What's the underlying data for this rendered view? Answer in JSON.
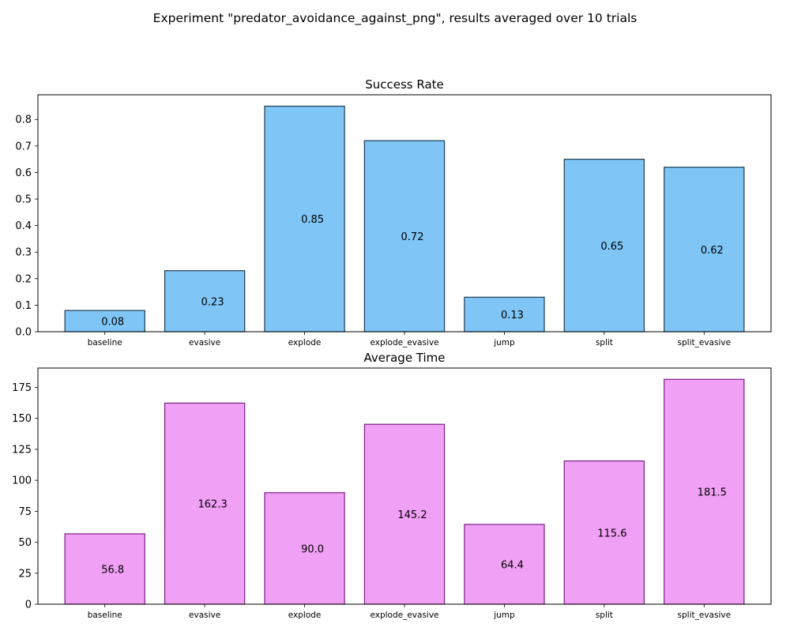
{
  "figure": {
    "suptitle": "Experiment \"predator_avoidance_against_png\", results averaged over 10 trials"
  },
  "chart_data": [
    {
      "type": "bar",
      "title": "Success Rate",
      "xlabel": "",
      "ylabel": "",
      "categories": [
        "baseline",
        "evasive",
        "explode",
        "explode_evasive",
        "jump",
        "split",
        "split_evasive"
      ],
      "values": [
        0.08,
        0.23,
        0.85,
        0.72,
        0.13,
        0.65,
        0.62
      ],
      "value_labels": [
        "0.08",
        "0.23",
        "0.85",
        "0.72",
        "0.13",
        "0.65",
        "0.62"
      ],
      "ylim": [
        0,
        0.893
      ],
      "yticks": [
        0.0,
        0.1,
        0.2,
        0.3,
        0.4,
        0.5,
        0.6,
        0.7,
        0.8
      ],
      "ytick_labels": [
        "0.0",
        "0.1",
        "0.2",
        "0.3",
        "0.4",
        "0.5",
        "0.6",
        "0.7",
        "0.8"
      ],
      "bar_color": "#7fc6f6",
      "edge_color": "#1d3b52",
      "grid": false,
      "legend": "none"
    },
    {
      "type": "bar",
      "title": "Average Time",
      "xlabel": "",
      "ylabel": "",
      "categories": [
        "baseline",
        "evasive",
        "explode",
        "explode_evasive",
        "jump",
        "split",
        "split_evasive"
      ],
      "values": [
        56.8,
        162.3,
        90.0,
        145.2,
        64.4,
        115.6,
        181.5
      ],
      "value_labels": [
        "56.8",
        "162.3",
        "90.0",
        "145.2",
        "64.4",
        "115.6",
        "181.5"
      ],
      "ylim": [
        0,
        190.6
      ],
      "yticks": [
        0,
        25,
        50,
        75,
        100,
        125,
        150,
        175
      ],
      "ytick_labels": [
        "0",
        "25",
        "50",
        "75",
        "100",
        "125",
        "150",
        "175"
      ],
      "bar_color": "#f0a0f5",
      "edge_color": "#7a1e86",
      "grid": false,
      "legend": "none"
    }
  ]
}
